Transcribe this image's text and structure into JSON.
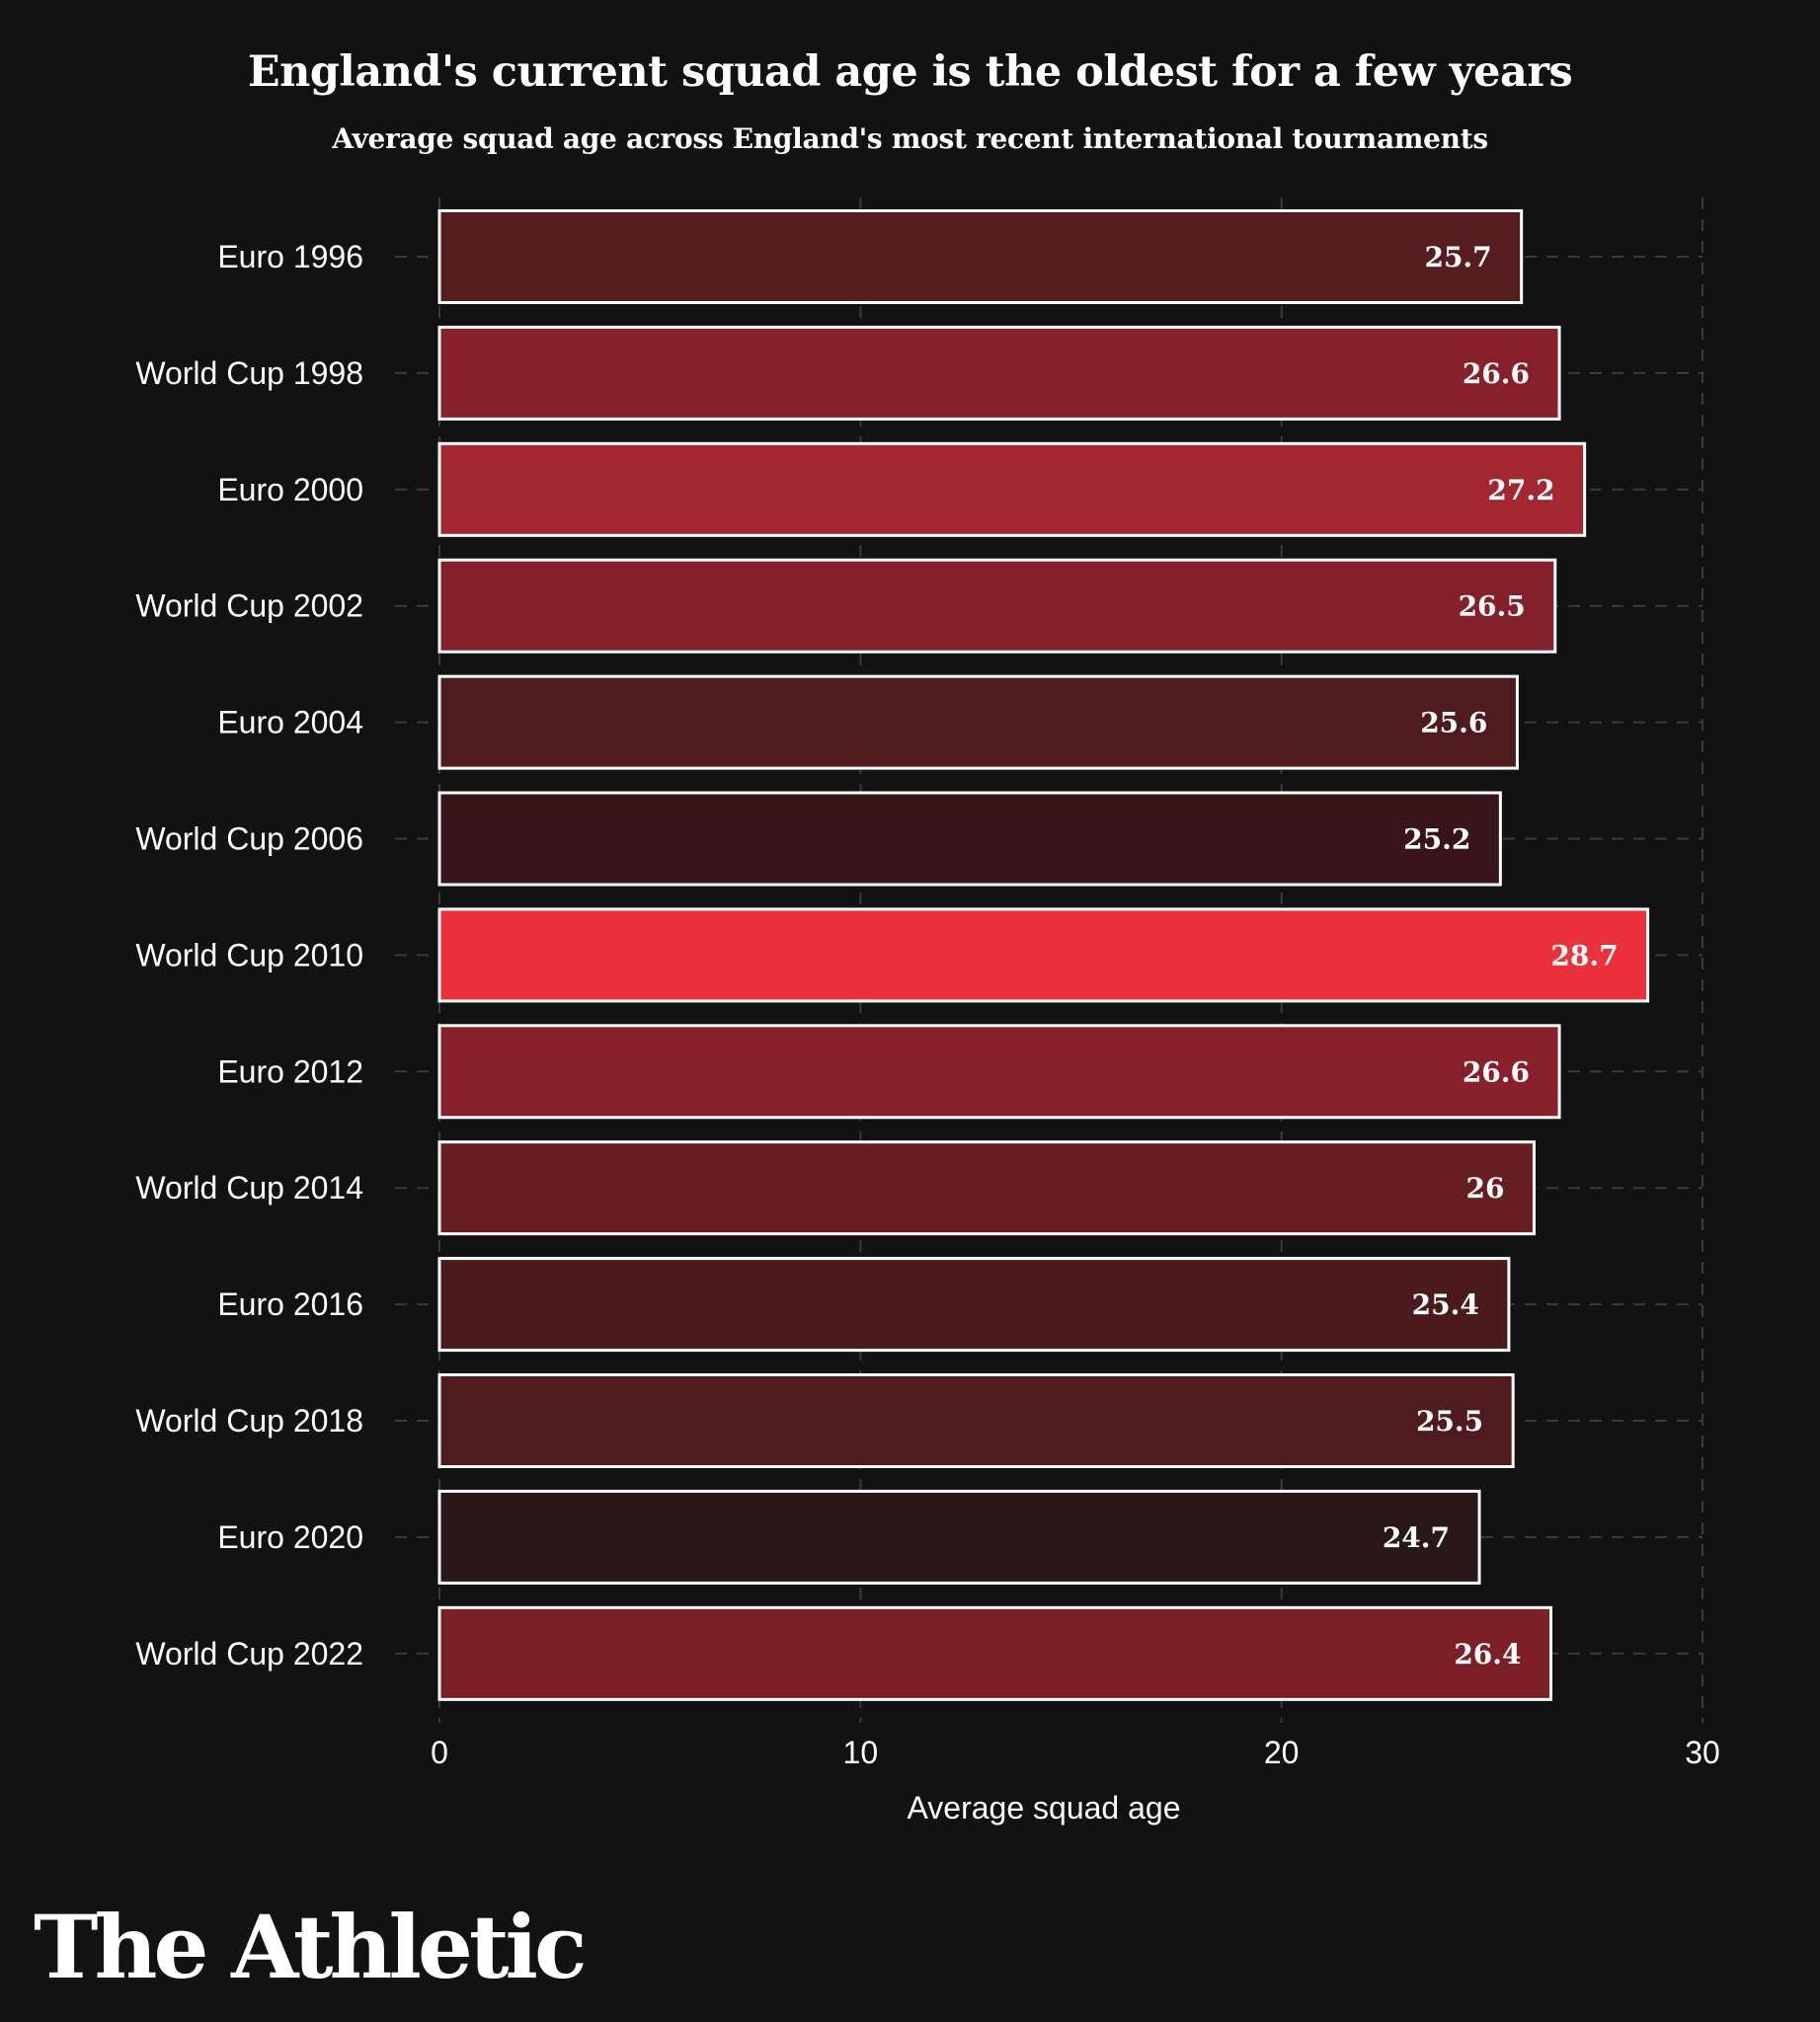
{
  "chart_data": {
    "type": "bar",
    "orientation": "horizontal",
    "title": "England's current squad age is the oldest for a few years",
    "subtitle": "Average squad age across England's most recent international tournaments",
    "xlabel": "Average squad age",
    "ylabel": "",
    "xlim": [
      0,
      30
    ],
    "xticks": [
      0,
      10,
      20,
      30
    ],
    "grid": true,
    "categories": [
      "Euro 1996",
      "World Cup 1998",
      "Euro 2000",
      "World Cup 2002",
      "Euro 2004",
      "World Cup 2006",
      "World Cup 2010",
      "Euro 2012",
      "World Cup 2014",
      "Euro 2016",
      "World Cup 2018",
      "Euro 2020",
      "World Cup 2022"
    ],
    "values": [
      25.7,
      26.6,
      27.2,
      26.5,
      25.6,
      25.2,
      28.7,
      26.6,
      26,
      25.4,
      25.5,
      24.7,
      26.4
    ],
    "value_labels": [
      "25.7",
      "26.6",
      "27.2",
      "26.5",
      "25.6",
      "25.2",
      "28.7",
      "26.6",
      "26",
      "25.4",
      "25.5",
      "24.7",
      "26.4"
    ],
    "bar_colors": [
      "#551d20",
      "#87202a",
      "#a32630",
      "#842029",
      "#501b1e",
      "#371518",
      "#ea313c",
      "#87202a",
      "#671e23",
      "#4a1a1d",
      "#4f1b1e",
      "#2a1718",
      "#7c1f26"
    ],
    "color_scale": "darker red = younger squad, bright red = oldest squad"
  },
  "branding": {
    "logo_text": "The Athletic"
  },
  "colors": {
    "background": "#121212",
    "text": "#ffffff",
    "bar_outline": "#ffffff",
    "grid": "#3a3a3a"
  }
}
